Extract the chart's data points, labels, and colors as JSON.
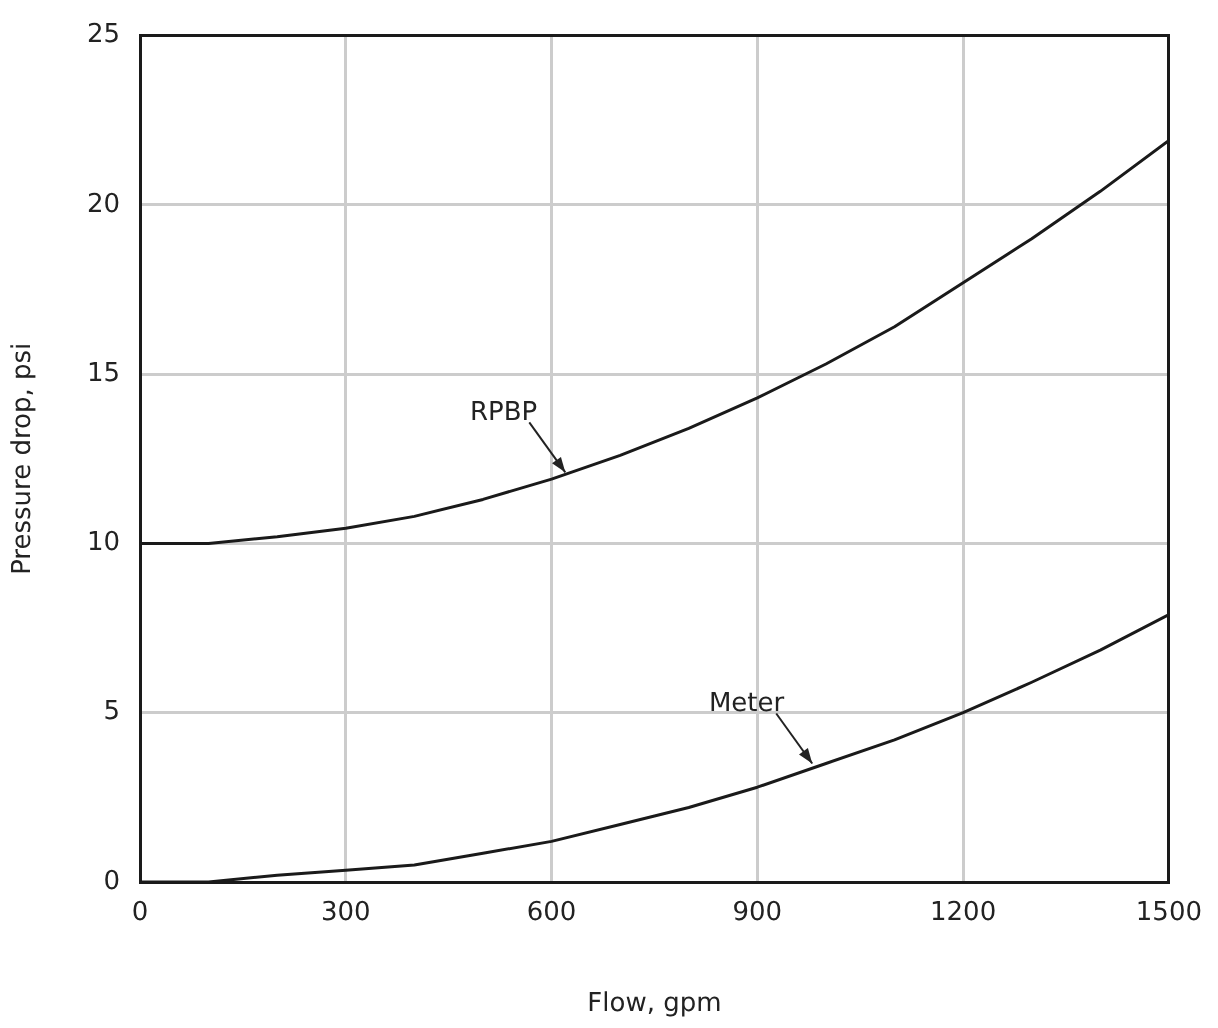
{
  "chart_data": {
    "type": "line",
    "xlabel": "Flow, gpm",
    "ylabel": "Pressure drop, psi",
    "xlim": [
      0,
      1500
    ],
    "xticks": [
      0,
      300,
      600,
      900,
      1200,
      1500
    ],
    "ylim": [
      0,
      25
    ],
    "yticks": [
      0,
      5,
      10,
      15,
      20,
      25
    ],
    "grid": true,
    "legend": false,
    "marker": "none",
    "line_style": "solid",
    "series": [
      {
        "color": "#1a1a1a",
        "x": [
          0,
          100,
          200,
          300,
          400,
          500,
          600,
          700,
          800,
          900,
          1000,
          1100,
          1200,
          1300,
          1400,
          1500
        ],
        "values": [
          10,
          10,
          10.2,
          10.45,
          10.8,
          11.3,
          11.9,
          12.6,
          13.4,
          14.3,
          15.3,
          16.4,
          17.7,
          19.0,
          20.4,
          21.9
        ]
      },
      {
        "color": "#1a1a1a",
        "x": [
          0,
          100,
          200,
          300,
          400,
          500,
          600,
          700,
          750,
          800,
          900,
          1000,
          1100,
          1200,
          1300,
          1400,
          1500
        ],
        "values": [
          0,
          0,
          0.2,
          0.35,
          0.5,
          0.85,
          1.2,
          1.7,
          1.95,
          2.2,
          2.8,
          3.5,
          4.2,
          5.0,
          5.9,
          6.85,
          7.9
        ]
      }
    ],
    "annotations": [
      {
        "text": "RPBP",
        "x": 620,
        "y": 12.1
      },
      {
        "text": "Meter",
        "x": 980,
        "y": 3.5
      }
    ]
  }
}
